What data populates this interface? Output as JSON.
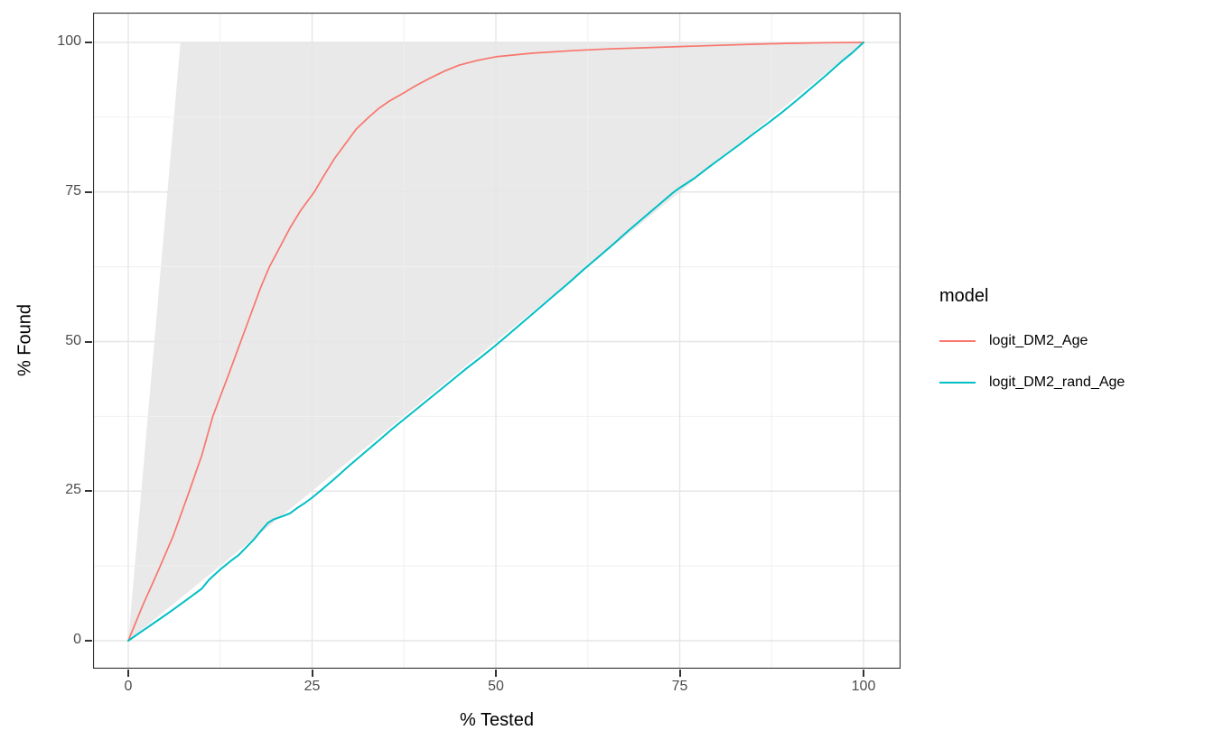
{
  "figure": {
    "background": "#FFFFFF",
    "panel_background": "#FFFFFF",
    "panel_border_color": "#333333",
    "grid_major_color": "#E6E6E6",
    "grid_minor_color": "#F0F0F0",
    "tick_mark_color": "#333333",
    "tick_label_color": "#4D4D4D",
    "axis_title_color": "#000000"
  },
  "axes": {
    "x": {
      "label": "% Tested",
      "ticks": [
        0,
        25,
        50,
        75,
        100
      ]
    },
    "y": {
      "label": "% Found",
      "ticks": [
        0,
        25,
        50,
        75,
        100
      ]
    }
  },
  "legend": {
    "title": "model",
    "items": [
      {
        "label": "logit_DM2_Age",
        "color": "#F8766D"
      },
      {
        "label": "logit_DM2_rand_Age",
        "color": "#00BFC4"
      }
    ]
  },
  "chart_data": {
    "type": "line",
    "title": "",
    "xlabel": "% Tested",
    "ylabel": "% Found",
    "xlim": [
      0,
      100
    ],
    "ylim": [
      0,
      100
    ],
    "grid": "major+minor",
    "legend_position": "right",
    "envelope": {
      "description": "gray region bounded above by the perfect model (reaches 100% found at ~7% tested) and below by the random diagonal",
      "color": "#E9E9E9",
      "points": [
        [
          0,
          0
        ],
        [
          7.1,
          100
        ],
        [
          100,
          100
        ]
      ]
    },
    "series": [
      {
        "name": "logit_DM2_Age",
        "color": "#F8766D",
        "width": 1.7,
        "points": [
          [
            0,
            0
          ],
          [
            2,
            6
          ],
          [
            4,
            11.5
          ],
          [
            6.1,
            17.5
          ],
          [
            8.3,
            25
          ],
          [
            10,
            31
          ],
          [
            11.5,
            37.5
          ],
          [
            12.5,
            40.8
          ],
          [
            13.5,
            44
          ],
          [
            15.3,
            50
          ],
          [
            16.5,
            54
          ],
          [
            18,
            59
          ],
          [
            19.2,
            62.5
          ],
          [
            20.5,
            65.5
          ],
          [
            22,
            69
          ],
          [
            23.5,
            72
          ],
          [
            25.3,
            75
          ],
          [
            26.5,
            77.5
          ],
          [
            28,
            80.5
          ],
          [
            29.5,
            83
          ],
          [
            31,
            85.5
          ],
          [
            32.7,
            87.5
          ],
          [
            34,
            88.9
          ],
          [
            35.5,
            90.2
          ],
          [
            37.5,
            91.6
          ],
          [
            39,
            92.7
          ],
          [
            41,
            94
          ],
          [
            43,
            95.2
          ],
          [
            45,
            96.2
          ],
          [
            47.5,
            97
          ],
          [
            50,
            97.6
          ],
          [
            52.5,
            97.9
          ],
          [
            55,
            98.2
          ],
          [
            57.5,
            98.4
          ],
          [
            60,
            98.6
          ],
          [
            65,
            98.9
          ],
          [
            70,
            99.1
          ],
          [
            75,
            99.3
          ],
          [
            80,
            99.5
          ],
          [
            85,
            99.7
          ],
          [
            90,
            99.85
          ],
          [
            95,
            99.95
          ],
          [
            100,
            100
          ]
        ]
      },
      {
        "name": "logit_DM2_rand_Age",
        "color": "#00BFC4",
        "width": 2,
        "points": [
          [
            0,
            0
          ],
          [
            2,
            1.7
          ],
          [
            4,
            3.4
          ],
          [
            6,
            5.1
          ],
          [
            8,
            6.9
          ],
          [
            10,
            8.7
          ],
          [
            11,
            10.2
          ],
          [
            12.5,
            11.9
          ],
          [
            14,
            13.4
          ],
          [
            15,
            14.3
          ],
          [
            17,
            16.8
          ],
          [
            18,
            18.3
          ],
          [
            19,
            19.7
          ],
          [
            19.8,
            20.3
          ],
          [
            21,
            20.8
          ],
          [
            22,
            21.3
          ],
          [
            23,
            22.2
          ],
          [
            24,
            23
          ],
          [
            25,
            23.9
          ],
          [
            26,
            24.9
          ],
          [
            28,
            27
          ],
          [
            30,
            29.2
          ],
          [
            32,
            31.3
          ],
          [
            34,
            33.4
          ],
          [
            36,
            35.5
          ],
          [
            38,
            37.5
          ],
          [
            40,
            39.5
          ],
          [
            42,
            41.5
          ],
          [
            44,
            43.5
          ],
          [
            46,
            45.5
          ],
          [
            48,
            47.4
          ],
          [
            50,
            49.4
          ],
          [
            52,
            51.5
          ],
          [
            54,
            53.6
          ],
          [
            56,
            55.7
          ],
          [
            58,
            57.8
          ],
          [
            60,
            59.9
          ],
          [
            62,
            62.1
          ],
          [
            64,
            64.2
          ],
          [
            66,
            66.3
          ],
          [
            68,
            68.5
          ],
          [
            70,
            70.6
          ],
          [
            72,
            72.7
          ],
          [
            74,
            74.8
          ],
          [
            75,
            75.7
          ],
          [
            77,
            77.3
          ],
          [
            79,
            79.2
          ],
          [
            81,
            81
          ],
          [
            83,
            82.8
          ],
          [
            85,
            84.7
          ],
          [
            87,
            86.5
          ],
          [
            89,
            88.4
          ],
          [
            91,
            90.4
          ],
          [
            93,
            92.5
          ],
          [
            95,
            94.6
          ],
          [
            97,
            96.8
          ],
          [
            98.5,
            98.3
          ],
          [
            100,
            100
          ]
        ]
      }
    ]
  }
}
